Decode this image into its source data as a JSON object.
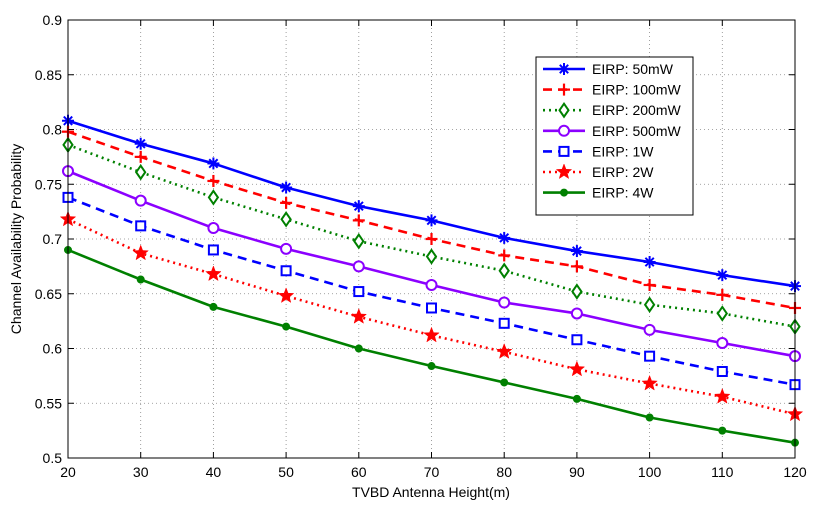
{
  "chart_data": {
    "type": "line",
    "title": "",
    "xlabel": "TVBD Antenna Height(m)",
    "ylabel": "Channel Availability Probability",
    "xlim": [
      20,
      120
    ],
    "ylim": [
      0.5,
      0.9
    ],
    "xticks": [
      20,
      30,
      40,
      50,
      60,
      70,
      80,
      90,
      100,
      110,
      120
    ],
    "yticks": [
      "0.5",
      "0.55",
      "0.6",
      "0.65",
      "0.7",
      "0.75",
      "0.8",
      "0.85",
      "0.9"
    ],
    "grid": true,
    "legend_position": "top-right",
    "x": [
      20,
      30,
      40,
      50,
      60,
      70,
      80,
      90,
      100,
      110,
      120
    ],
    "series": [
      {
        "name": "EIRP: 50mW",
        "color": "#0000ff",
        "dash": "solid",
        "marker": "asterisk",
        "values": [
          0.808,
          0.787,
          0.769,
          0.747,
          0.73,
          0.717,
          0.701,
          0.689,
          0.679,
          0.667,
          0.657
        ]
      },
      {
        "name": "EIRP: 100mW",
        "color": "#ff0000",
        "dash": "dashed",
        "marker": "plus",
        "values": [
          0.798,
          0.775,
          0.753,
          0.733,
          0.717,
          0.7,
          0.685,
          0.675,
          0.658,
          0.649,
          0.637
        ]
      },
      {
        "name": "EIRP: 200mW",
        "color": "#008000",
        "dash": "dotted",
        "marker": "diamond",
        "values": [
          0.786,
          0.761,
          0.738,
          0.718,
          0.698,
          0.684,
          0.671,
          0.652,
          0.64,
          0.632,
          0.62
        ]
      },
      {
        "name": "EIRP: 500mW",
        "color": "#8b00ff",
        "dash": "solid",
        "marker": "circle",
        "values": [
          0.762,
          0.735,
          0.71,
          0.691,
          0.675,
          0.658,
          0.642,
          0.632,
          0.617,
          0.605,
          0.593
        ]
      },
      {
        "name": "EIRP: 1W",
        "color": "#0000ff",
        "dash": "dashed",
        "marker": "square",
        "values": [
          0.738,
          0.712,
          0.69,
          0.671,
          0.652,
          0.637,
          0.623,
          0.608,
          0.593,
          0.579,
          0.567
        ]
      },
      {
        "name": "EIRP: 2W",
        "color": "#ff0000",
        "dash": "dotted",
        "marker": "star",
        "values": [
          0.718,
          0.687,
          0.668,
          0.648,
          0.629,
          0.612,
          0.597,
          0.581,
          0.568,
          0.556,
          0.54
        ]
      },
      {
        "name": "EIRP: 4W",
        "color": "#008000",
        "dash": "solid",
        "marker": "dot",
        "values": [
          0.69,
          0.663,
          0.638,
          0.62,
          0.6,
          0.584,
          0.569,
          0.554,
          0.537,
          0.525,
          0.514
        ]
      }
    ]
  }
}
